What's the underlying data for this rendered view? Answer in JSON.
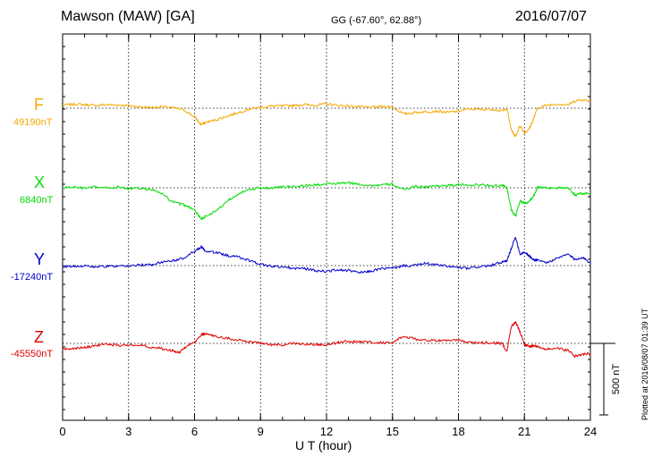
{
  "header": {
    "station": "Mawson (MAW)  [GA]",
    "coords": "GG (-67.60°,  62.88°)",
    "date": "2016/07/07"
  },
  "scale_label": "500 nT",
  "plotted_note": "Plotted at 2016/08/07 01:39 UT",
  "colors": {
    "F": "#f5a800",
    "X": "#00dd00",
    "Y": "#0000cc",
    "Z": "#e00000"
  },
  "chart_data": {
    "type": "line",
    "title": "Mawson (MAW)  [GA]",
    "xlabel": "U T (hour)",
    "ylabel": "",
    "xlim": [
      0,
      24
    ],
    "xticks": [
      "0",
      "3",
      "6",
      "9",
      "12",
      "15",
      "18",
      "21",
      "24"
    ],
    "grid": true,
    "scale_bar_nT": 500,
    "series": [
      {
        "name": "F",
        "baseline_label": "49190nT",
        "x": [
          0,
          0.5,
          1,
          1.5,
          2,
          2.5,
          3,
          3.5,
          4,
          4.5,
          5,
          5.5,
          6,
          6.3,
          6.5,
          7,
          7.5,
          8,
          8.5,
          9,
          9.5,
          10,
          10.5,
          11,
          11.5,
          12,
          12.5,
          13,
          13.5,
          14,
          14.5,
          15,
          15.5,
          16,
          16.5,
          17,
          17.5,
          18,
          18.5,
          19,
          19.5,
          20,
          20.2,
          20.4,
          20.6,
          20.8,
          21,
          21.2,
          21.4,
          21.6,
          22,
          22.5,
          23,
          23.3,
          23.6,
          24
        ],
        "y": [
          20,
          28,
          25,
          18,
          25,
          22,
          18,
          10,
          5,
          10,
          3,
          -10,
          -60,
          -115,
          -100,
          -80,
          -55,
          -30,
          -5,
          5,
          15,
          15,
          20,
          25,
          20,
          30,
          20,
          15,
          10,
          5,
          12,
          10,
          -40,
          -30,
          -25,
          -20,
          -30,
          -20,
          -5,
          -10,
          -5,
          -20,
          0,
          -150,
          -200,
          -120,
          -170,
          -150,
          -80,
          0,
          20,
          30,
          25,
          50,
          60,
          50
        ]
      },
      {
        "name": "X",
        "baseline_label": "6840nT",
        "x": [
          0,
          0.5,
          1,
          1.5,
          2,
          2.5,
          3,
          3.5,
          4,
          4.5,
          5,
          5.5,
          6,
          6.3,
          6.5,
          7,
          7.5,
          8,
          8.5,
          9,
          9.5,
          10,
          10.5,
          11,
          11.5,
          12,
          12.5,
          13,
          13.5,
          14,
          14.5,
          15,
          15.5,
          16,
          16.5,
          17,
          17.5,
          18,
          18.5,
          19,
          19.5,
          20,
          20.2,
          20.4,
          20.6,
          20.8,
          21,
          21.2,
          21.4,
          21.6,
          22,
          22.5,
          23,
          23.3,
          23.6,
          24
        ],
        "y": [
          0,
          5,
          -5,
          5,
          -2,
          5,
          -5,
          -5,
          -10,
          -40,
          -100,
          -120,
          -150,
          -220,
          -200,
          -160,
          -90,
          -40,
          -15,
          0,
          0,
          5,
          10,
          15,
          20,
          25,
          30,
          35,
          25,
          15,
          20,
          25,
          -15,
          10,
          5,
          15,
          15,
          20,
          20,
          20,
          15,
          15,
          0,
          -150,
          -200,
          -90,
          -110,
          -100,
          -60,
          5,
          0,
          0,
          -5,
          -50,
          -40,
          -40
        ]
      },
      {
        "name": "Y",
        "baseline_label": "-17240nT",
        "x": [
          0,
          0.5,
          1,
          1.5,
          2,
          2.5,
          3,
          3.5,
          4,
          4.5,
          5,
          5.5,
          6,
          6.3,
          6.5,
          7,
          7.5,
          8,
          8.5,
          9,
          9.5,
          10,
          10.5,
          11,
          11.5,
          12,
          12.5,
          13,
          13.5,
          14,
          14.5,
          15,
          15.5,
          16,
          16.5,
          17,
          17.5,
          18,
          18.5,
          19,
          19.5,
          20,
          20.2,
          20.4,
          20.6,
          20.8,
          21,
          21.2,
          21.4,
          21.6,
          22,
          22.5,
          23,
          23.3,
          23.6,
          24
        ],
        "y": [
          -5,
          -5,
          0,
          -10,
          -5,
          -5,
          -5,
          5,
          5,
          25,
          35,
          50,
          100,
          130,
          100,
          90,
          70,
          60,
          35,
          10,
          -5,
          -10,
          -20,
          -20,
          -35,
          -40,
          -30,
          -35,
          -50,
          -40,
          -20,
          -20,
          0,
          0,
          15,
          5,
          -5,
          -15,
          -20,
          -5,
          0,
          25,
          30,
          120,
          200,
          80,
          95,
          70,
          40,
          40,
          20,
          50,
          80,
          40,
          60,
          20
        ]
      },
      {
        "name": "Z",
        "baseline_label": "-45550nT",
        "x": [
          0,
          0.5,
          1,
          1.5,
          2,
          2.5,
          3,
          3.5,
          4,
          4.5,
          5,
          5.3,
          5.6,
          6,
          6.3,
          6.5,
          7,
          7.5,
          8,
          8.5,
          9,
          9.5,
          10,
          10.5,
          11,
          11.5,
          12,
          12.5,
          13,
          13.5,
          14,
          14.5,
          15,
          15.5,
          16,
          16.5,
          17,
          17.5,
          18,
          18.5,
          19,
          19.5,
          20,
          20.2,
          20.4,
          20.6,
          20.8,
          21,
          21.2,
          21.4,
          21.6,
          22,
          22.5,
          23,
          23.3,
          23.6,
          24
        ],
        "y": [
          -40,
          -35,
          -30,
          -15,
          -5,
          -15,
          -10,
          -10,
          -25,
          -35,
          -50,
          -65,
          -25,
          10,
          60,
          70,
          45,
          35,
          25,
          10,
          5,
          -10,
          -10,
          0,
          -5,
          -10,
          -10,
          5,
          15,
          10,
          10,
          5,
          5,
          50,
          30,
          20,
          20,
          25,
          20,
          5,
          5,
          5,
          0,
          -60,
          120,
          150,
          80,
          -10,
          -20,
          -20,
          -20,
          -40,
          -35,
          -50,
          -90,
          -80,
          -70
        ]
      }
    ]
  }
}
